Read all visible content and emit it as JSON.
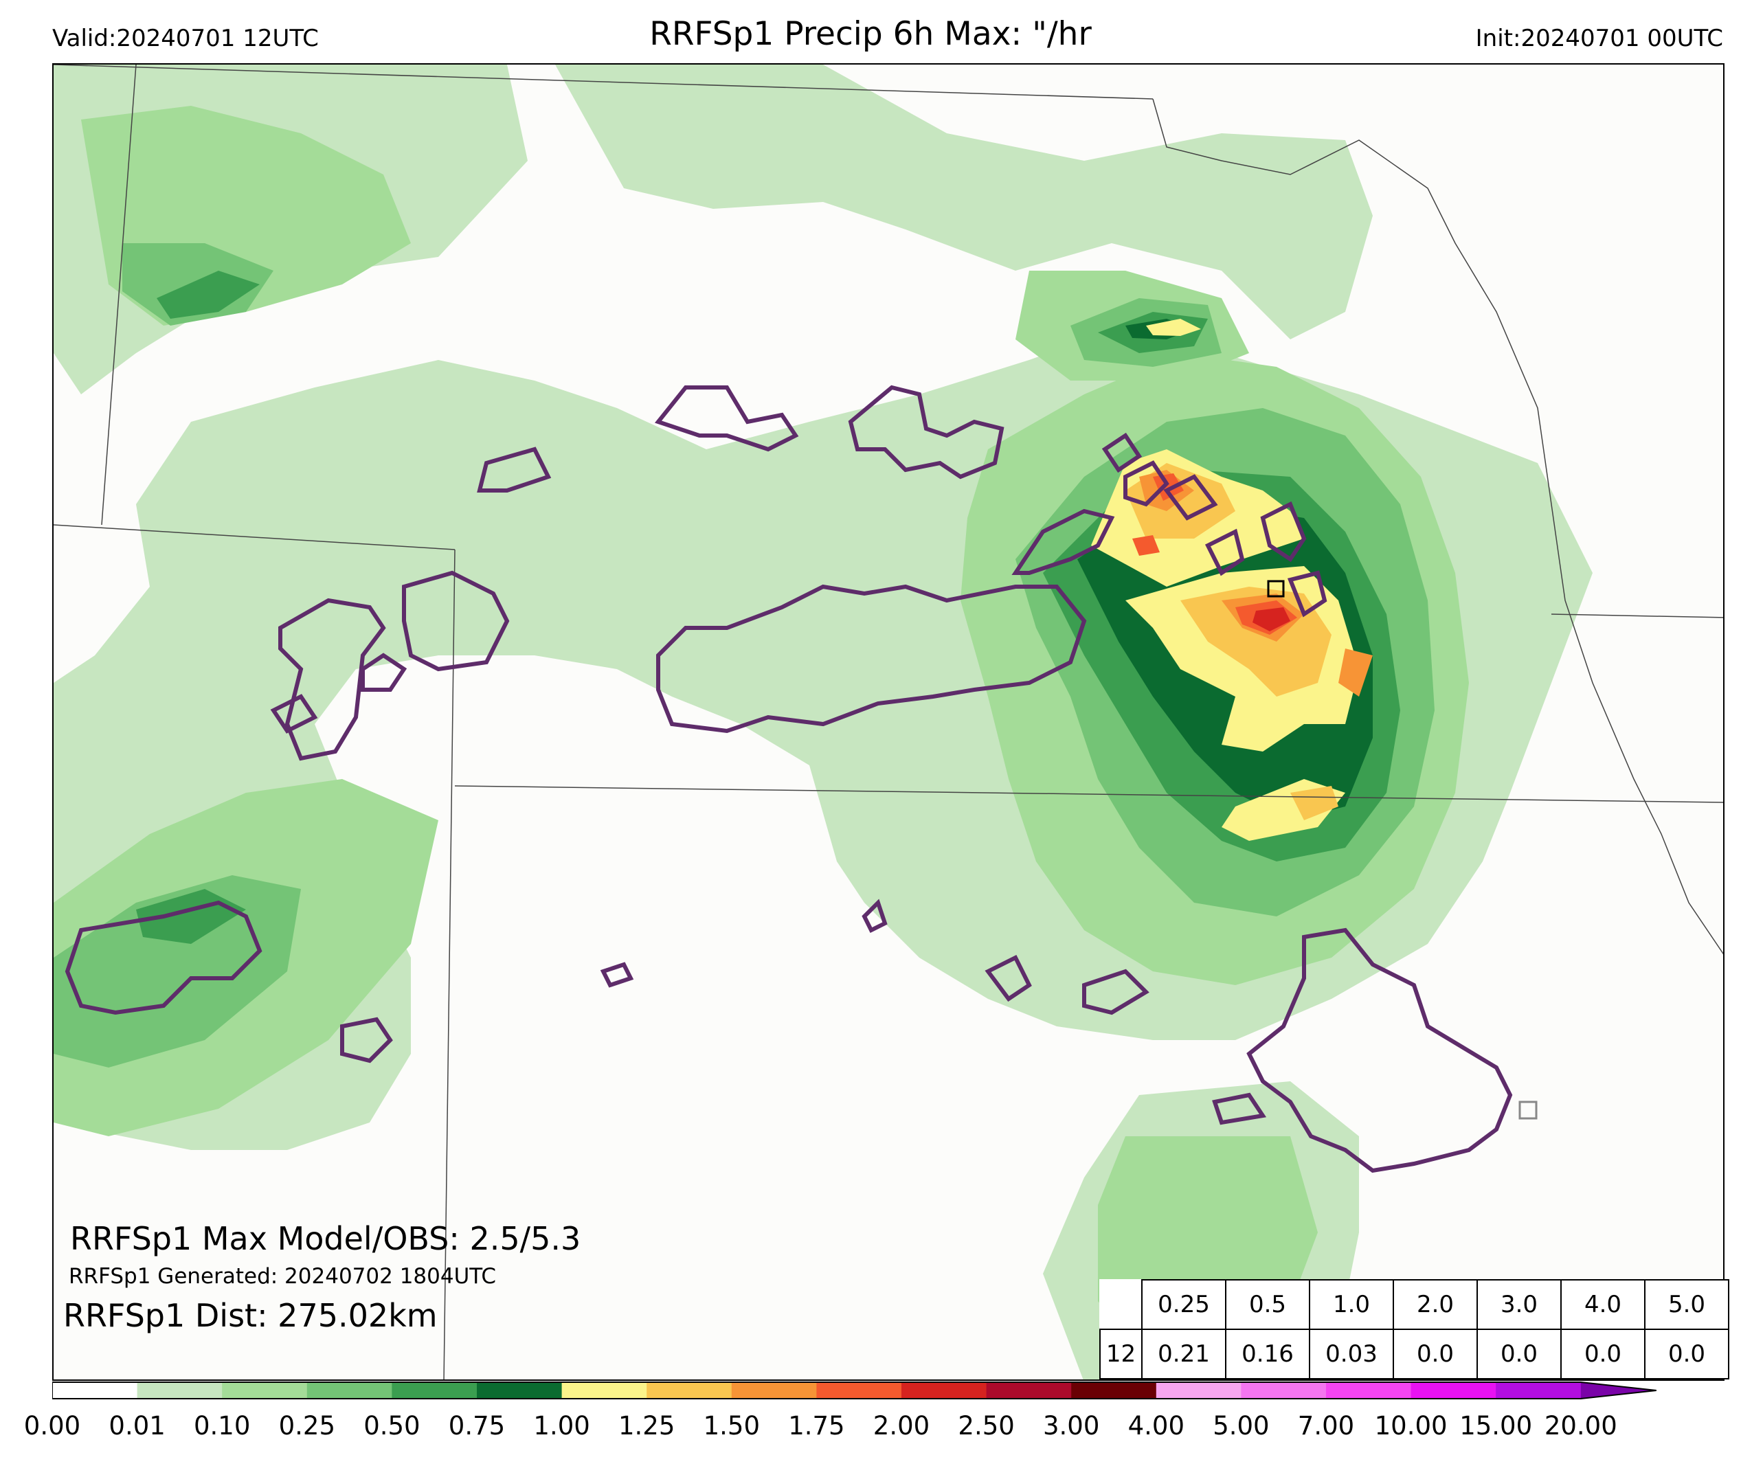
{
  "header": {
    "valid": "Valid:20240701 12UTC",
    "title": "RRFSp1 Precip 6h Max: \"/hr",
    "init": "Init:20240701 00UTC"
  },
  "annotations": {
    "max_model_obs": "RRFSp1 Max Model/OBS: 2.5/5.3",
    "generated": "RRFSp1 Generated: 20240702 1804UTC",
    "distance": "RRFSp1 Dist: 275.02km"
  },
  "threshold_table": {
    "thresholds": [
      "0.25",
      "0.5",
      "1.0",
      "2.0",
      "3.0",
      "4.0",
      "5.0"
    ],
    "row_label": "12",
    "values": [
      "0.21",
      "0.16",
      "0.03",
      "0.0",
      "0.0",
      "0.0",
      "0.0"
    ]
  },
  "colorbar": {
    "ticks": [
      "0.00",
      "0.01",
      "0.10",
      "0.25",
      "0.50",
      "0.75",
      "1.00",
      "1.25",
      "1.50",
      "1.75",
      "2.00",
      "2.50",
      "3.00",
      "4.00",
      "5.00",
      "7.00",
      "10.00",
      "15.00",
      "20.00"
    ],
    "colors": [
      "#ffffff",
      "#c7e6c0",
      "#a4dc98",
      "#74c476",
      "#3b9e50",
      "#0b6b30",
      "#fbf48b",
      "#f9c650",
      "#f79436",
      "#f45a2e",
      "#d6231f",
      "#ac0a2b",
      "#6a0004",
      "#f7a6ef",
      "#f476f0",
      "#f445f2",
      "#e812f2",
      "#b20ee0",
      "#7a03a8"
    ]
  },
  "colors": {
    "obs_contour": "#5e2c6a",
    "border": "#444444",
    "background": "#fcfcfa"
  }
}
